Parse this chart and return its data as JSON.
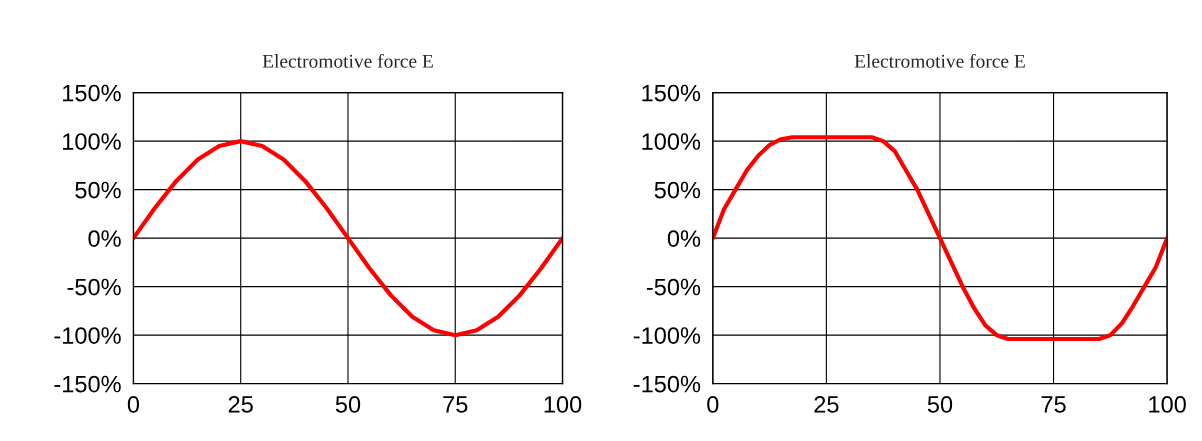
{
  "chart_data": [
    {
      "type": "line",
      "title": "Electromotive force E",
      "x": [
        0,
        5,
        10,
        15,
        20,
        25,
        30,
        35,
        40,
        45,
        50,
        55,
        60,
        65,
        70,
        75,
        80,
        85,
        90,
        95,
        100
      ],
      "series": [
        {
          "color": "#ff0000",
          "values": [
            0,
            31,
            59,
            81,
            95,
            100,
            95,
            81,
            59,
            31,
            0,
            -31,
            -59,
            -81,
            -95,
            -100,
            -95,
            -81,
            -59,
            -31,
            0
          ]
        }
      ],
      "xlim": [
        0,
        100
      ],
      "xticks": [
        0,
        25,
        50,
        75,
        100
      ],
      "ylim": [
        -150,
        150
      ],
      "yticks": [
        {
          "value": -150,
          "label": "-150%"
        },
        {
          "value": -100,
          "label": "-100%"
        },
        {
          "value": -50,
          "label": "-50%"
        },
        {
          "value": 0,
          "label": "0%"
        },
        {
          "value": 50,
          "label": "50%"
        },
        {
          "value": 100,
          "label": "100%"
        },
        {
          "value": 150,
          "label": "150%"
        }
      ],
      "grid": true,
      "legend": false,
      "marker": "none",
      "line_style": "solid"
    },
    {
      "type": "line",
      "title": "Electromotive force E",
      "x": [
        0,
        2.5,
        5,
        7.5,
        10,
        12.5,
        15,
        17.5,
        25,
        35,
        37.5,
        40,
        42.5,
        45,
        47.5,
        50,
        52.5,
        55,
        57.5,
        60,
        62.5,
        65,
        75,
        85,
        87.5,
        90,
        92.5,
        95,
        97.5,
        100
      ],
      "series": [
        {
          "color": "#ff0000",
          "values": [
            0,
            30,
            50,
            70,
            85,
            96,
            102,
            104,
            104,
            104,
            100,
            90,
            70,
            50,
            25,
            0,
            -25,
            -50,
            -72,
            -90,
            -100,
            -104,
            -104,
            -104,
            -100,
            -88,
            -70,
            -50,
            -30,
            0
          ]
        }
      ],
      "xlim": [
        0,
        100
      ],
      "xticks": [
        0,
        25,
        50,
        75,
        100
      ],
      "ylim": [
        -150,
        150
      ],
      "yticks": [
        {
          "value": -150,
          "label": "-150%"
        },
        {
          "value": -100,
          "label": "-100%"
        },
        {
          "value": -50,
          "label": "-50%"
        },
        {
          "value": 0,
          "label": "0%"
        },
        {
          "value": 50,
          "label": "50%"
        },
        {
          "value": 100,
          "label": "100%"
        },
        {
          "value": 150,
          "label": "150%"
        }
      ],
      "grid": true,
      "legend": false,
      "marker": "none",
      "line_style": "solid"
    }
  ]
}
